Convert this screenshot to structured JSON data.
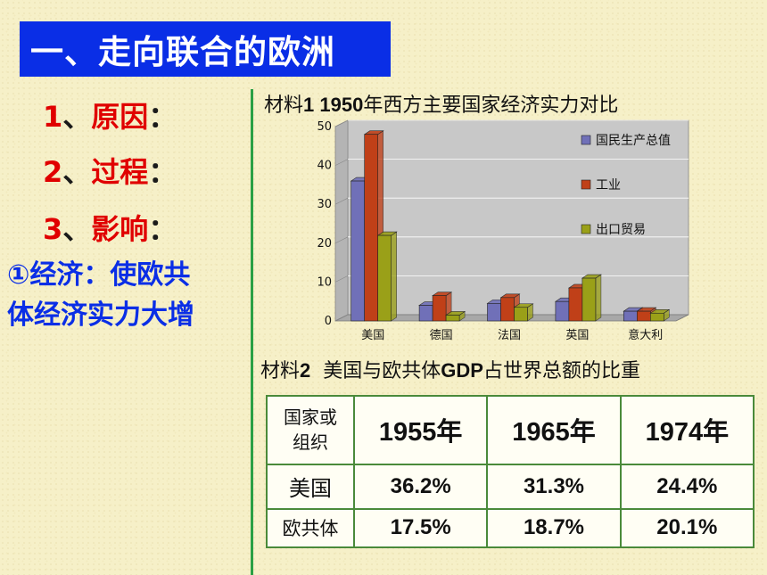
{
  "title": "一、走向联合的欧洲",
  "outline": [
    {
      "num": "1",
      "sep": "、",
      "label": "原因",
      "colon": "："
    },
    {
      "num": "2",
      "sep": "、",
      "label": "过程",
      "colon": "："
    },
    {
      "num": "3",
      "sep": "、",
      "label": "影响",
      "colon": "："
    }
  ],
  "effect_line1": "①经济：使欧共",
  "effect_line2": "体经济实力大增",
  "material1": {
    "prefix": "材料",
    "num": "1 1950",
    "text": "年西方主要国家经济实力对比"
  },
  "material2": {
    "prefix": "材料",
    "num": "2",
    "text": "  美国与欧共体",
    "gdp": "GDP",
    "rest": "占世界总额的比重"
  },
  "chart_data": {
    "type": "bar",
    "categories": [
      "美国",
      "德国",
      "法国",
      "英国",
      "意大利"
    ],
    "series": [
      {
        "name": "国民生产总值",
        "color": "#7070b8",
        "values": [
          36,
          4,
          4.5,
          5,
          2.5
        ]
      },
      {
        "name": "工业",
        "color": "#c04018",
        "values": [
          48,
          6.5,
          6,
          8.5,
          2.5
        ]
      },
      {
        "name": "出口贸易",
        "color": "#9aa018",
        "values": [
          22,
          1.5,
          3.5,
          11,
          2
        ]
      }
    ],
    "yticks": [
      "0",
      "10",
      "20",
      "30",
      "40",
      "50"
    ],
    "ylim": [
      0,
      50
    ],
    "legend_position": "right",
    "grid": true
  },
  "table": {
    "header_line1": "国家或",
    "header_line2": "组织",
    "years": [
      "1955年",
      "1965年",
      "1974年"
    ],
    "rows": [
      {
        "name": "美国",
        "values": [
          "36.2%",
          "31.3%",
          "24.4%"
        ]
      },
      {
        "name": "欧共体",
        "values": [
          "17.5%",
          "18.7%",
          "20.1%"
        ]
      }
    ]
  }
}
